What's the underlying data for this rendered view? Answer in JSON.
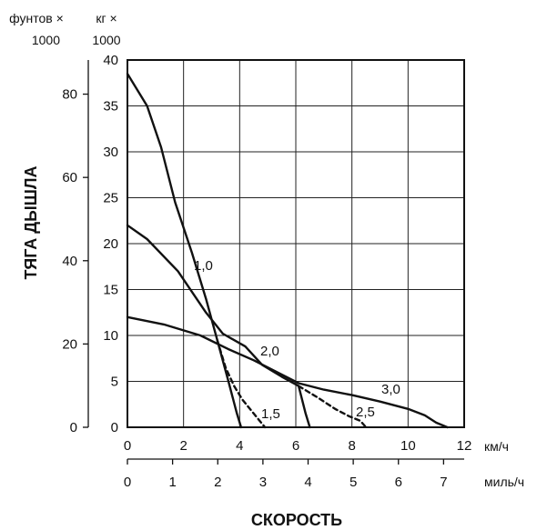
{
  "chart_data": {
    "type": "line",
    "ylabel": "ТЯГА ДЫШЛА",
    "xlabel": "СКОРОСТЬ",
    "y_axes": [
      {
        "unit_line1": "фунтов ×",
        "unit_line2": "1000",
        "ticks": [
          "0",
          "20",
          "40",
          "60",
          "80"
        ],
        "range": [
          0,
          88.2
        ]
      },
      {
        "unit_line1": "кг ×",
        "unit_line2": "1000",
        "ticks": [
          "0",
          "5",
          "10",
          "15",
          "20",
          "25",
          "30",
          "35",
          "40"
        ],
        "range": [
          0,
          40
        ]
      }
    ],
    "x_axes": [
      {
        "unit": "км/ч",
        "ticks": [
          "0",
          "2",
          "4",
          "6",
          "8",
          "10",
          "12"
        ],
        "range": [
          0,
          12
        ]
      },
      {
        "unit": "миль/ч",
        "ticks": [
          "0",
          "1",
          "2",
          "3",
          "4",
          "5",
          "6",
          "7"
        ],
        "range": [
          0,
          7.456
        ]
      }
    ],
    "grid": true,
    "series_units": {
      "x": "км/ч",
      "y": "кг × 1000"
    },
    "series": [
      {
        "name": "1,0",
        "style": "solid",
        "x": [
          0,
          0.7,
          1.2,
          1.7,
          2.3,
          2.8,
          3.2,
          3.6,
          3.9,
          4.05
        ],
        "y": [
          38.5,
          35,
          30.5,
          24.5,
          19,
          14,
          9.5,
          5,
          1.5,
          0
        ]
      },
      {
        "name": "1,5",
        "style": "dashed",
        "x": [
          3.2,
          3.5,
          3.8,
          4.1,
          4.5,
          4.9
        ],
        "y": [
          9.5,
          6.5,
          4.5,
          3,
          1.5,
          0
        ]
      },
      {
        "name": "2,0",
        "style": "solid",
        "x": [
          0,
          0.7,
          1.8,
          2.8,
          3.4,
          4.2,
          4.8,
          5.5,
          6.1,
          6.35,
          6.5
        ],
        "y": [
          22,
          20.5,
          17,
          12.5,
          10.2,
          8.8,
          6.8,
          5.5,
          4.5,
          1.5,
          0
        ]
      },
      {
        "name": "2,5",
        "style": "dashed",
        "x": [
          6.1,
          6.8,
          7.4,
          7.9,
          8.3,
          8.5
        ],
        "y": [
          4.5,
          3.2,
          2,
          1.2,
          0.7,
          0
        ]
      },
      {
        "name": "3,0",
        "style": "solid",
        "x": [
          0,
          1.3,
          2.6,
          3.6,
          4.5,
          5.4,
          6.1,
          7.0,
          8.0,
          9.0,
          10.0,
          10.6,
          11.0,
          11.4
        ],
        "y": [
          12,
          11.2,
          10,
          8.5,
          7.3,
          5.9,
          4.8,
          4.1,
          3.5,
          2.8,
          2,
          1.3,
          0.5,
          0
        ]
      }
    ]
  }
}
